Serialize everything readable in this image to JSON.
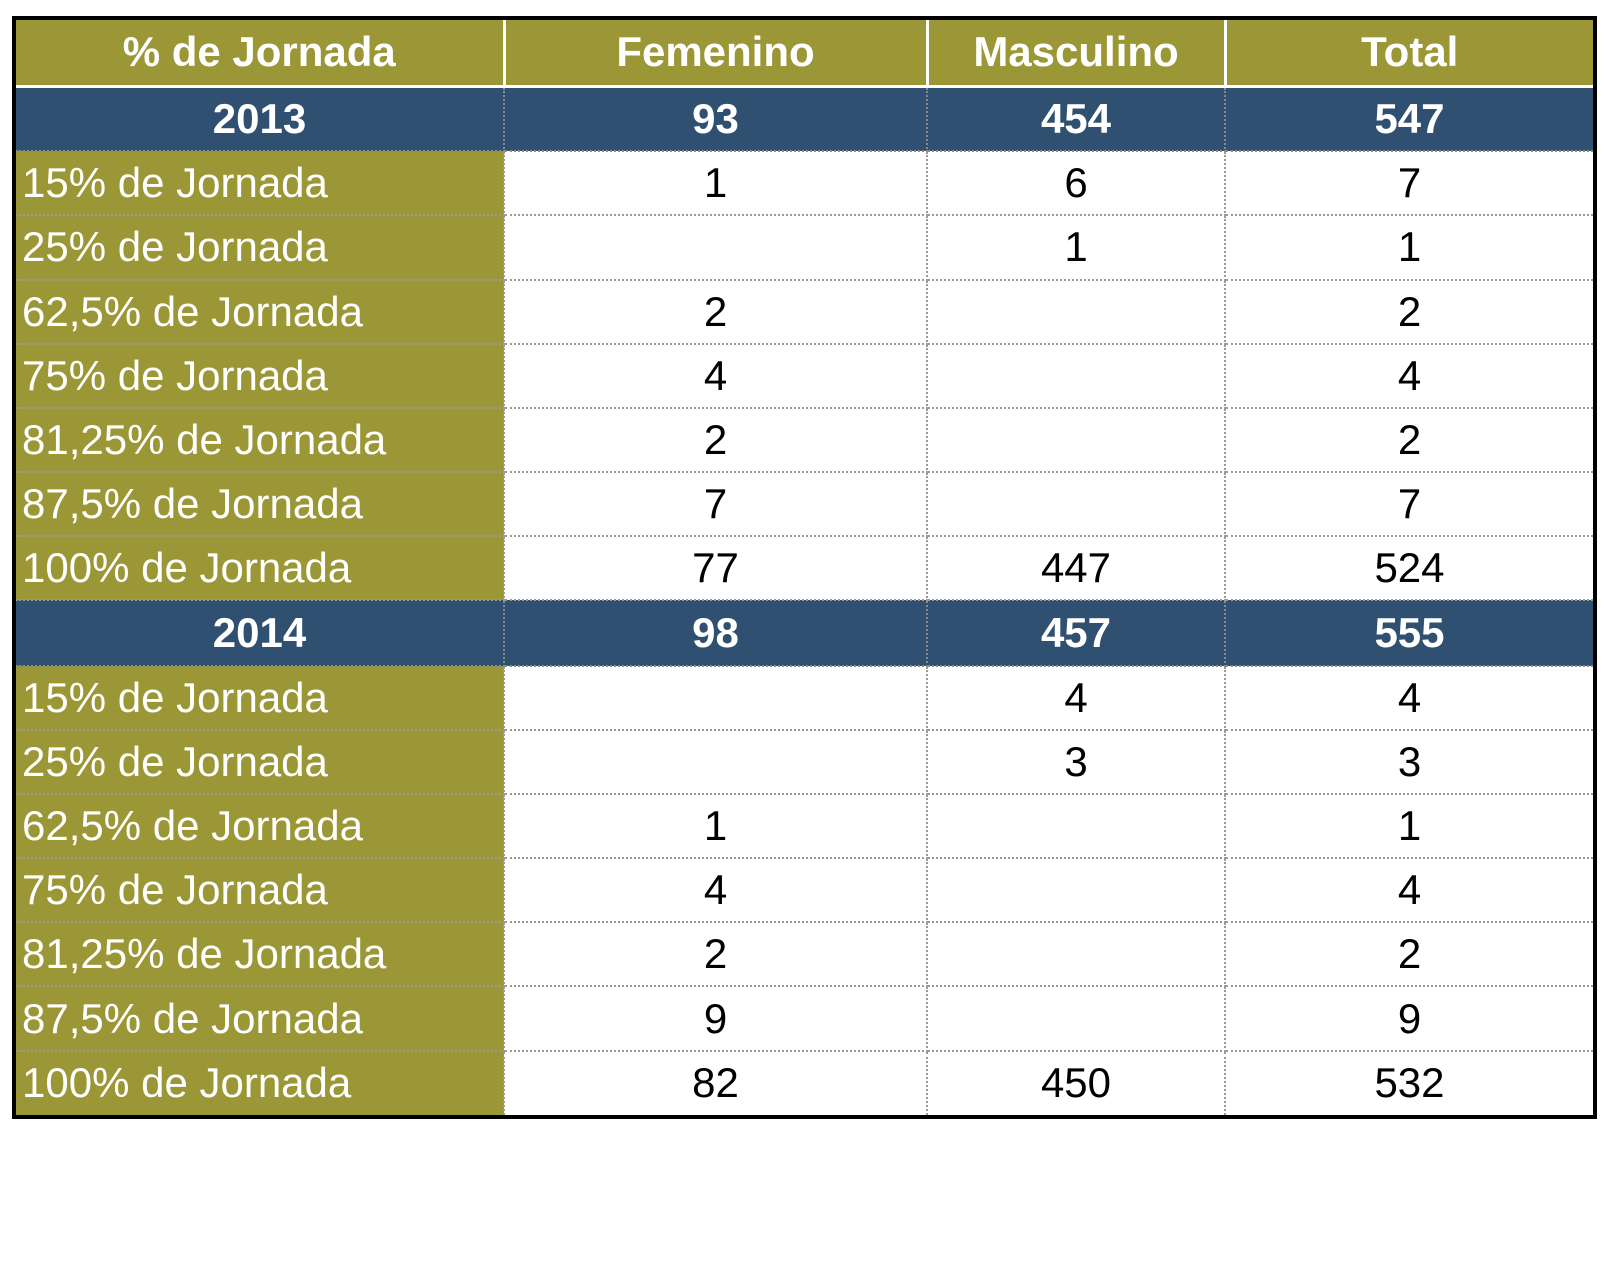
{
  "table": {
    "headers": [
      "% de Jornada",
      "Femenino",
      "Masculino",
      "Total"
    ],
    "groups": [
      {
        "year": "2013",
        "femenino": "93",
        "masculino": "454",
        "total": "547",
        "rows": [
          {
            "label": "15% de Jornada",
            "femenino": "1",
            "masculino": "6",
            "total": "7"
          },
          {
            "label": "25% de Jornada",
            "femenino": "",
            "masculino": "1",
            "total": "1"
          },
          {
            "label": "62,5% de Jornada",
            "femenino": "2",
            "masculino": "",
            "total": "2"
          },
          {
            "label": "75% de Jornada",
            "femenino": "4",
            "masculino": "",
            "total": "4"
          },
          {
            "label": "81,25% de Jornada",
            "femenino": "2",
            "masculino": "",
            "total": "2"
          },
          {
            "label": "87,5% de Jornada",
            "femenino": "7",
            "masculino": "",
            "total": "7"
          },
          {
            "label": "100% de Jornada",
            "femenino": "77",
            "masculino": "447",
            "total": "524"
          }
        ]
      },
      {
        "year": "2014",
        "femenino": "98",
        "masculino": "457",
        "total": "555",
        "rows": [
          {
            "label": "15% de Jornada",
            "femenino": "",
            "masculino": "4",
            "total": "4"
          },
          {
            "label": "25% de Jornada",
            "femenino": "",
            "masculino": "3",
            "total": "3"
          },
          {
            "label": "62,5% de Jornada",
            "femenino": "1",
            "masculino": "",
            "total": "1"
          },
          {
            "label": "75% de Jornada",
            "femenino": "4",
            "masculino": "",
            "total": "4"
          },
          {
            "label": "81,25% de Jornada",
            "femenino": "2",
            "masculino": "",
            "total": "2"
          },
          {
            "label": "87,5% de Jornada",
            "femenino": "9",
            "masculino": "",
            "total": "9"
          },
          {
            "label": "100% de Jornada",
            "femenino": "82",
            "masculino": "450",
            "total": "532"
          }
        ]
      }
    ]
  },
  "colors": {
    "header_bg": "#9b9636",
    "year_row_bg": "#2f5070",
    "header_text": "#ffffff",
    "body_text": "#000000",
    "border": "#000000"
  }
}
